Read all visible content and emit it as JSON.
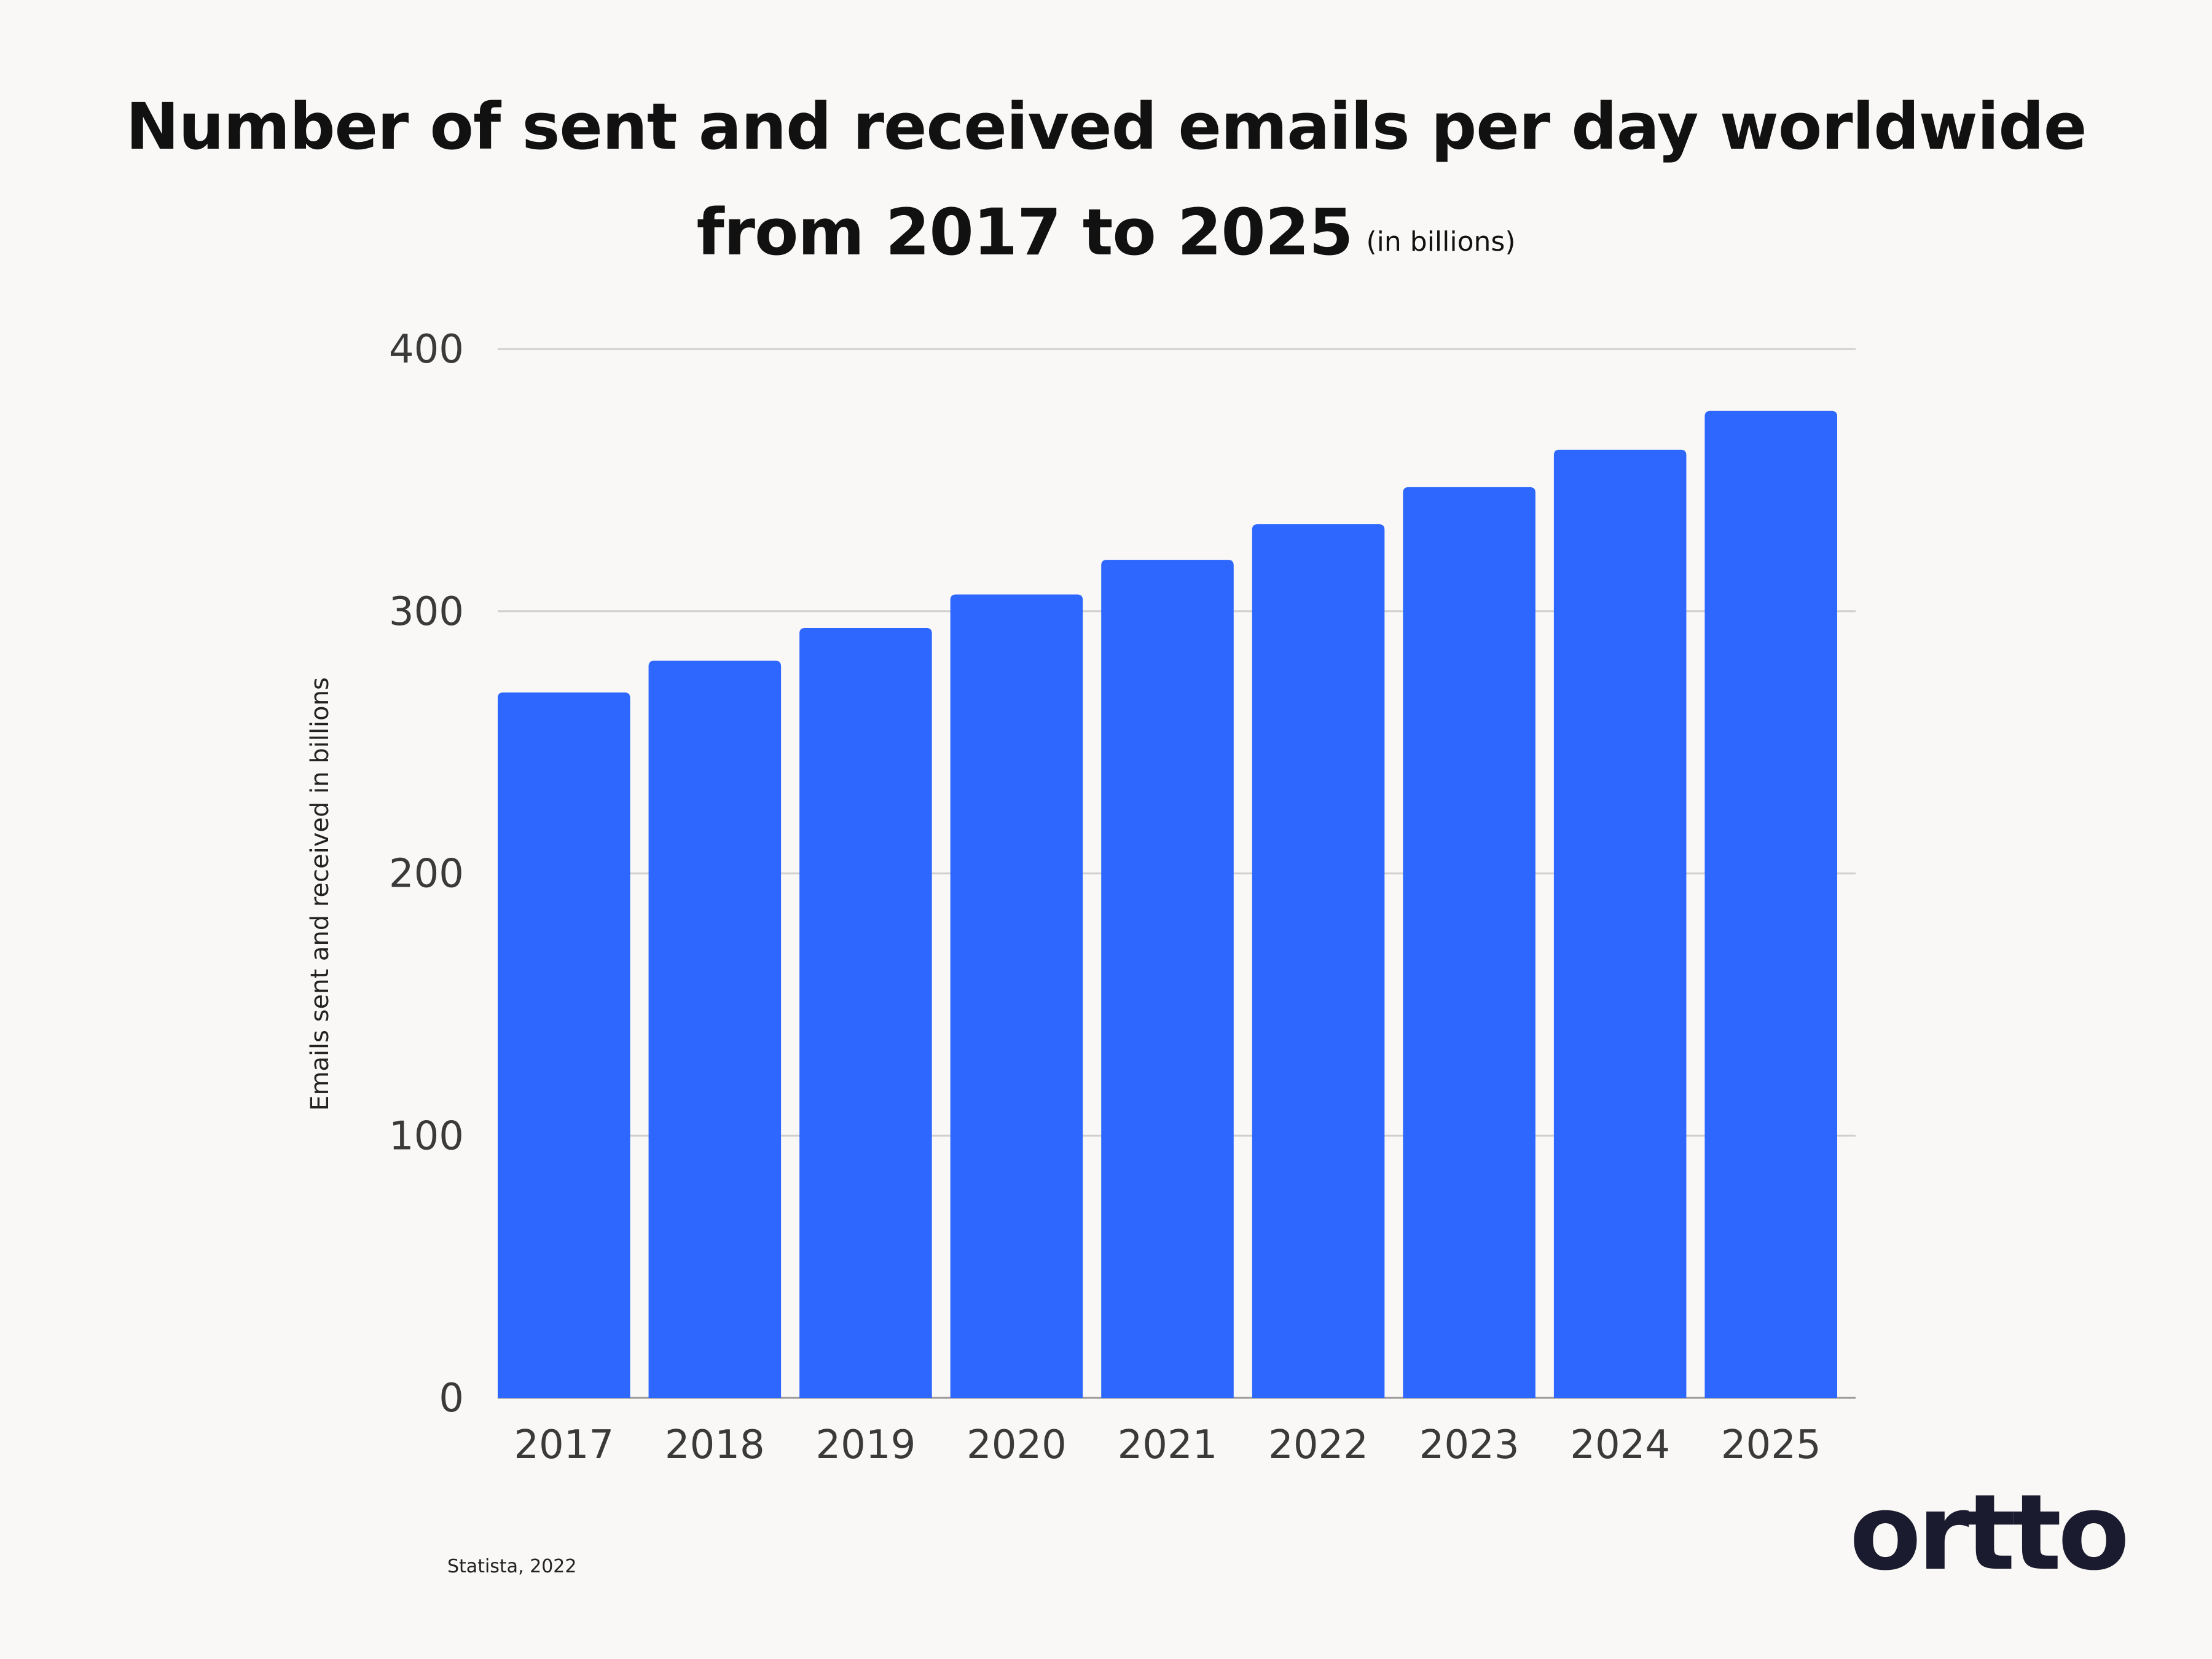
{
  "chart_data": {
    "type": "bar",
    "title": "Number of sent and received emails per day worldwide from 2017 to 2025",
    "subtitle": "(in billions)",
    "ylabel": "Emails sent and received in billions",
    "xlabel": "",
    "categories": [
      "2017",
      "2018",
      "2019",
      "2020",
      "2021",
      "2022",
      "2023",
      "2024",
      "2025"
    ],
    "values": [
      269,
      281.1,
      293.6,
      306.4,
      319.6,
      333.2,
      347.3,
      361.6,
      376.4
    ],
    "ylim": [
      0,
      400
    ],
    "yticks": [
      0,
      100,
      200,
      300,
      400
    ],
    "grid": true,
    "legend": "none",
    "bar_color": "#2d67fe",
    "grid_color": "#cfcfcf"
  },
  "title_line1": "Number of sent and received emails per day worldwide",
  "title_line2": "from 2017 to 2025",
  "source": "Statista, 2022",
  "logo_text": "ortto",
  "colors": {
    "background": "#f9f8f6",
    "logo": "#1a1b2e",
    "text": "#111111"
  }
}
